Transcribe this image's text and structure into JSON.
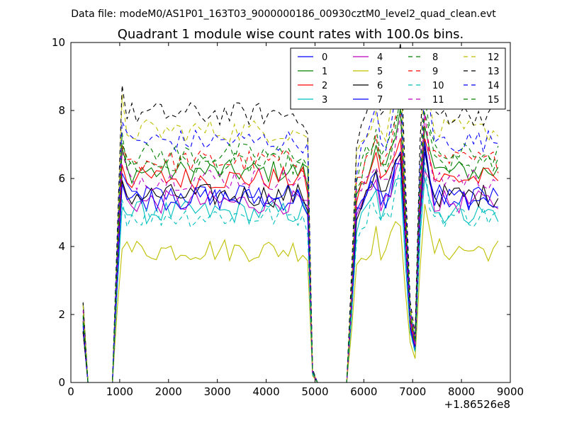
{
  "header": {
    "data_file": "Data file: modeM0/AS1P01_163T03_9000000186_00930cztM0_level2_quad_clean.evt"
  },
  "chart_data": {
    "type": "line",
    "title": "Quadrant 1 module wise count rates with 100.0s bins.",
    "xlabel": "",
    "ylabel": "",
    "x_offset_label": "+1.86526e8",
    "xlim": [
      0,
      9000
    ],
    "ylim": [
      0,
      10
    ],
    "xticks": [
      0,
      1000,
      2000,
      3000,
      4000,
      5000,
      6000,
      7000,
      8000,
      9000
    ],
    "yticks": [
      0,
      2,
      4,
      6,
      8,
      10
    ],
    "grid": false,
    "legend_position": "top-right",
    "legend_columns": 4,
    "base_levels": [
      5.5,
      6.2,
      6.0,
      5.0,
      5.3,
      3.9,
      5.5,
      5.4,
      6.4,
      6.5,
      4.9,
      6.0,
      7.4,
      7.9,
      7.1,
      6.7
    ],
    "series": [
      {
        "name": "0",
        "color": "#0000ff",
        "dash": "solid"
      },
      {
        "name": "1",
        "color": "#008000",
        "dash": "solid"
      },
      {
        "name": "2",
        "color": "#ff0000",
        "dash": "solid"
      },
      {
        "name": "3",
        "color": "#00bfbf",
        "dash": "solid"
      },
      {
        "name": "4",
        "color": "#bf00bf",
        "dash": "solid"
      },
      {
        "name": "5",
        "color": "#bfbf00",
        "dash": "solid"
      },
      {
        "name": "6",
        "color": "#000000",
        "dash": "solid"
      },
      {
        "name": "7",
        "color": "#0000ff",
        "dash": "solid"
      },
      {
        "name": "8",
        "color": "#008000",
        "dash": "dashed"
      },
      {
        "name": "9",
        "color": "#ff0000",
        "dash": "dashed"
      },
      {
        "name": "10",
        "color": "#00bfbf",
        "dash": "dashed"
      },
      {
        "name": "11",
        "color": "#bf00bf",
        "dash": "dashed"
      },
      {
        "name": "12",
        "color": "#bfbf00",
        "dash": "dashed"
      },
      {
        "name": "13",
        "color": "#000000",
        "dash": "dashed"
      },
      {
        "name": "14",
        "color": "#0000ff",
        "dash": "dashed"
      },
      {
        "name": "15",
        "color": "#008000",
        "dash": "dashed"
      }
    ]
  }
}
